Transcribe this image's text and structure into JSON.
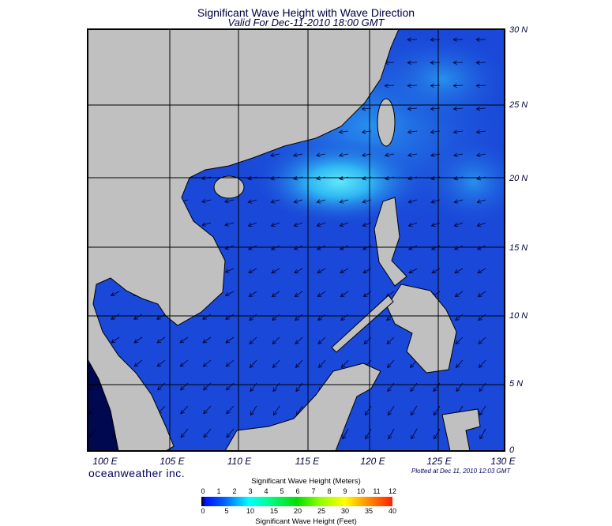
{
  "title": "Significant Wave Height with Wave Direction",
  "subtitle": "Valid For Dec-11-2010 18:00 GMT",
  "map": {
    "region": "South China Sea",
    "lon_labels": [
      "100 E",
      "105 E",
      "110 E",
      "115 E",
      "120 E",
      "125 E",
      "130 E"
    ],
    "lat_labels": [
      "30 N",
      "25 N",
      "20 N",
      "15 N",
      "10 N",
      "5 N",
      "0"
    ],
    "colors": {
      "land": "#c0c0c0",
      "sea_base": "#1a48d8",
      "sea_high": "#40d8f8",
      "grid": "#000000"
    },
    "wave_direction": "northeast to southwest"
  },
  "brand": "oceanweather inc.",
  "plotted": "Plotted at Dec 11, 2010 12:03 GMT",
  "colorbar": {
    "title_meters": "Significant Wave Height (Meters)",
    "title_feet": "Significant Wave Height (Feet)",
    "meters": [
      "0",
      "1",
      "2",
      "3",
      "4",
      "5",
      "6",
      "7",
      "8",
      "9",
      "10",
      "11",
      "12"
    ],
    "feet": [
      "0",
      "5",
      "10",
      "15",
      "20",
      "25",
      "30",
      "35",
      "40"
    ]
  }
}
